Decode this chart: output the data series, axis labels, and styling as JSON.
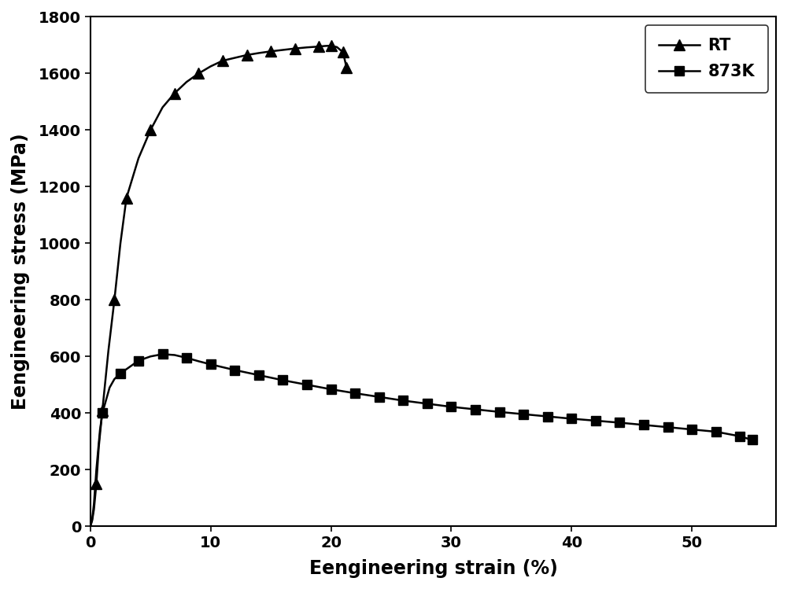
{
  "RT_x": [
    0.0,
    0.15,
    0.3,
    0.5,
    0.7,
    1.0,
    1.5,
    2.0,
    2.5,
    3.0,
    4.0,
    5.0,
    6.0,
    7.0,
    8.0,
    9.0,
    10.0,
    11.0,
    12.0,
    13.0,
    14.0,
    15.0,
    16.0,
    17.0,
    18.0,
    19.0,
    19.5,
    20.0,
    20.5,
    21.0,
    21.3
  ],
  "RT_y": [
    0,
    20,
    60,
    150,
    280,
    410,
    620,
    800,
    1000,
    1160,
    1300,
    1400,
    1480,
    1530,
    1570,
    1600,
    1625,
    1645,
    1655,
    1665,
    1672,
    1678,
    1683,
    1688,
    1692,
    1695,
    1697,
    1698,
    1693,
    1675,
    1620
  ],
  "RT_marker_x": [
    0.5,
    1.0,
    2.0,
    3.0,
    5.0,
    7.0,
    9.0,
    11.0,
    13.0,
    15.0,
    17.0,
    19.0,
    20.0,
    21.0,
    21.3
  ],
  "RT_marker_y": [
    150,
    410,
    800,
    1160,
    1400,
    1530,
    1600,
    1645,
    1665,
    1678,
    1688,
    1695,
    1698,
    1675,
    1620
  ],
  "K873_x": [
    0.0,
    0.15,
    0.3,
    0.5,
    0.8,
    1.0,
    1.3,
    1.6,
    2.0,
    2.5,
    3.0,
    3.5,
    4.0,
    5.0,
    6.0,
    7.0,
    8.0,
    9.0,
    10.0,
    11.0,
    12.0,
    13.0,
    14.0,
    15.0,
    16.0,
    17.0,
    18.0,
    19.0,
    20.0,
    22.0,
    24.0,
    26.0,
    28.0,
    30.0,
    32.0,
    34.0,
    36.0,
    38.0,
    40.0,
    42.0,
    44.0,
    46.0,
    48.0,
    50.0,
    52.0,
    54.0,
    55.0
  ],
  "K873_y": [
    0,
    25,
    80,
    200,
    340,
    400,
    445,
    490,
    520,
    540,
    555,
    570,
    585,
    600,
    608,
    605,
    595,
    583,
    572,
    562,
    552,
    543,
    534,
    525,
    516,
    508,
    500,
    492,
    484,
    470,
    457,
    444,
    433,
    422,
    413,
    404,
    396,
    388,
    380,
    373,
    366,
    358,
    350,
    342,
    334,
    318,
    305
  ],
  "K873_marker_x": [
    1.0,
    2.5,
    4.0,
    6.0,
    8.0,
    10.0,
    12.0,
    14.0,
    16.0,
    18.0,
    20.0,
    22.0,
    24.0,
    26.0,
    28.0,
    30.0,
    32.0,
    34.0,
    36.0,
    38.0,
    40.0,
    42.0,
    44.0,
    46.0,
    48.0,
    50.0,
    52.0,
    54.0,
    55.0
  ],
  "K873_marker_y": [
    400,
    540,
    585,
    608,
    595,
    572,
    552,
    534,
    516,
    500,
    484,
    470,
    457,
    444,
    433,
    422,
    413,
    404,
    396,
    388,
    380,
    373,
    366,
    358,
    350,
    342,
    334,
    318,
    305
  ],
  "xlabel": "Eengineering strain (%)",
  "ylabel": "Eengineering stress (MPa)",
  "xlim": [
    0,
    57
  ],
  "ylim": [
    0,
    1800
  ],
  "xticks": [
    0,
    10,
    20,
    30,
    40,
    50
  ],
  "yticks": [
    0,
    200,
    400,
    600,
    800,
    1000,
    1200,
    1400,
    1600,
    1800
  ],
  "legend_RT": "RT",
  "legend_873K": "873K",
  "line_color": "#000000",
  "background_color": "#ffffff",
  "figure_width": 10.0,
  "figure_height": 7.49,
  "dpi": 100,
  "line_width": 1.8,
  "marker_size_tri": 10,
  "marker_size_sq": 9,
  "tick_fontsize": 14,
  "label_fontsize": 17,
  "legend_fontsize": 15
}
